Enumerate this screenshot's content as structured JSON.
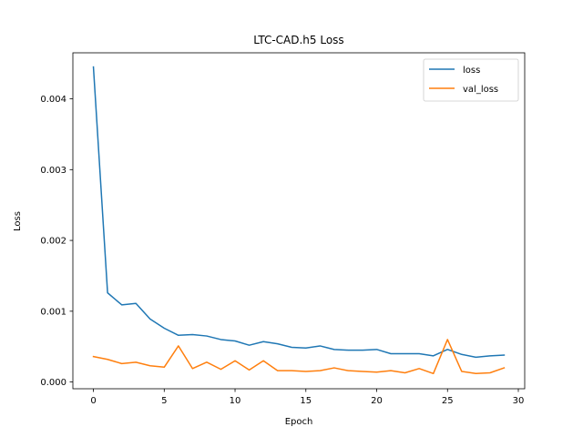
{
  "chart_data": {
    "type": "line",
    "title": "LTC-CAD.h5 Loss",
    "xlabel": "Epoch",
    "ylabel": "Loss",
    "xlim": [
      -1.45,
      30.45
    ],
    "ylim": [
      -9.5e-05,
      0.00465
    ],
    "xticks": [
      "0",
      "5",
      "10",
      "15",
      "20",
      "25",
      "30"
    ],
    "yticks": [
      "0.000",
      "0.001",
      "0.002",
      "0.003",
      "0.004"
    ],
    "grid": false,
    "legend_position": "top-right",
    "x": [
      0,
      1,
      2,
      3,
      4,
      5,
      6,
      7,
      8,
      9,
      10,
      11,
      12,
      13,
      14,
      15,
      16,
      17,
      18,
      19,
      20,
      21,
      22,
      23,
      24,
      25,
      26,
      27,
      28,
      29
    ],
    "series": [
      {
        "name": "loss",
        "color": "#1f77b4",
        "values": [
          0.00445,
          0.00126,
          0.00109,
          0.00111,
          0.00089,
          0.00076,
          0.00066,
          0.00067,
          0.00065,
          0.0006,
          0.00058,
          0.00052,
          0.00057,
          0.00054,
          0.00049,
          0.00048,
          0.00051,
          0.00046,
          0.00045,
          0.00045,
          0.00046,
          0.0004,
          0.0004,
          0.0004,
          0.00037,
          0.00046,
          0.00039,
          0.00035,
          0.00037,
          0.00038
        ]
      },
      {
        "name": "val_loss",
        "color": "#ff7f0e",
        "values": [
          0.00036,
          0.00032,
          0.00026,
          0.00028,
          0.00023,
          0.00021,
          0.00051,
          0.00019,
          0.00028,
          0.00018,
          0.0003,
          0.00017,
          0.0003,
          0.00016,
          0.00016,
          0.00015,
          0.00016,
          0.0002,
          0.00016,
          0.00015,
          0.00014,
          0.00016,
          0.00013,
          0.00019,
          0.00012,
          0.0006,
          0.00015,
          0.00012,
          0.00013,
          0.0002
        ]
      }
    ]
  }
}
